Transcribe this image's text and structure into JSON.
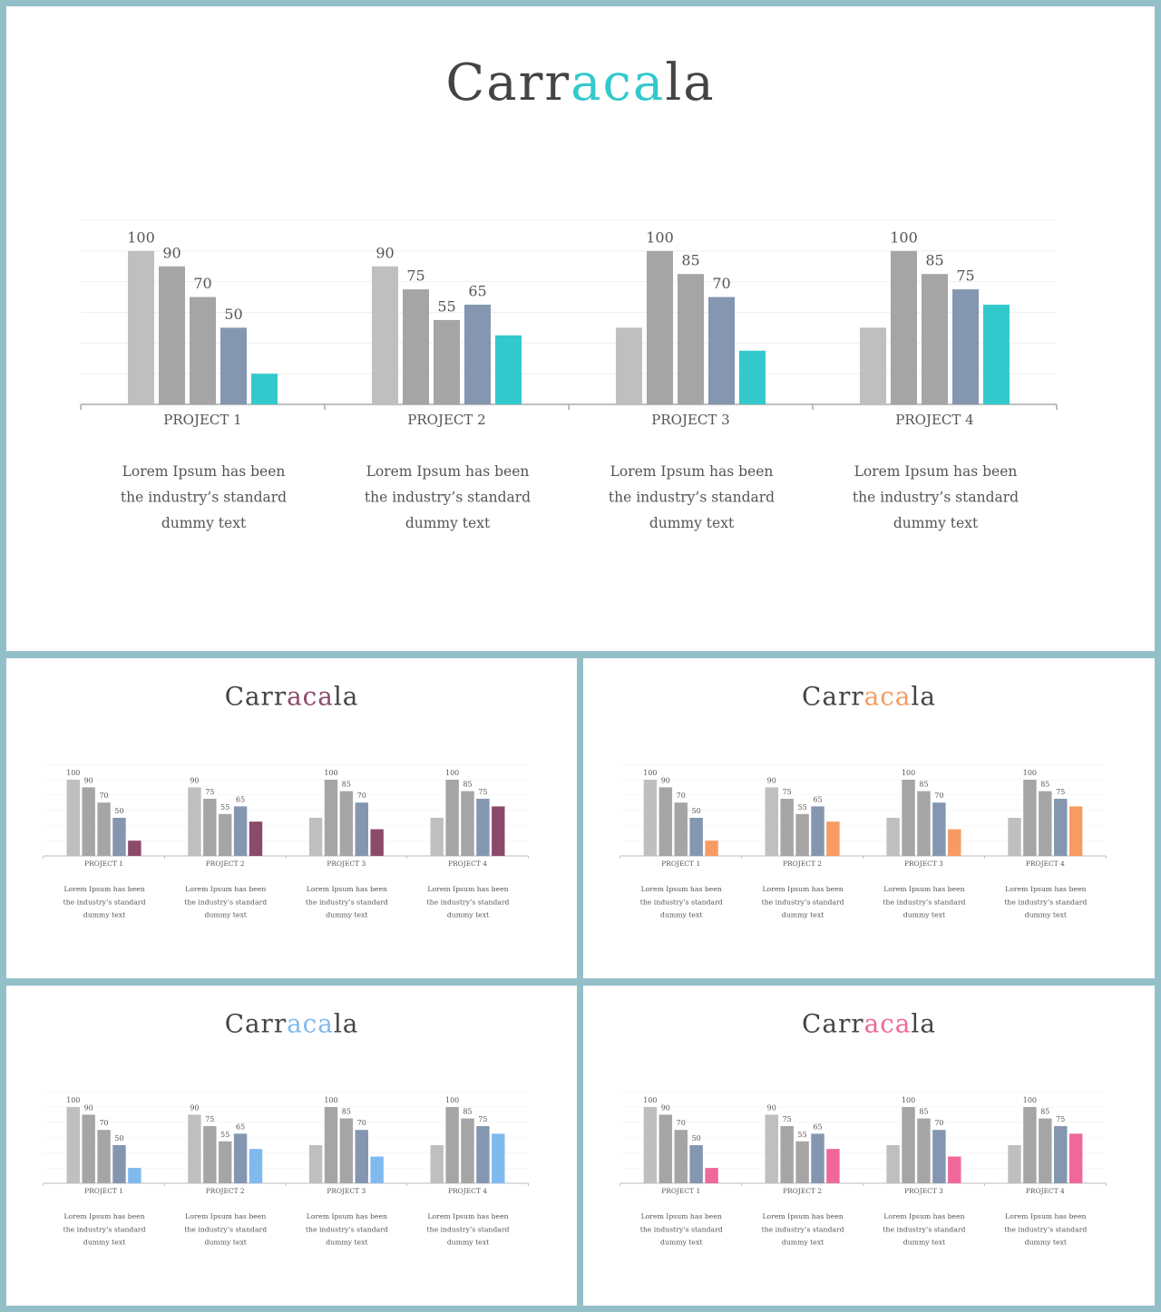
{
  "chart_data": [
    {
      "type": "bar",
      "title": [
        "Carr",
        "aca",
        "la"
      ],
      "title_accent": "#33c9cc",
      "categories": [
        "PROJECT 1",
        "PROJECT 2",
        "PROJECT 3",
        "PROJECT 4"
      ],
      "series": [
        {
          "color": "#bfbfbf",
          "values": [
            100,
            90,
            50,
            50
          ],
          "value_labels": [
            "100",
            "90",
            null,
            null
          ]
        },
        {
          "color": "#a5a5a5",
          "values": [
            90,
            75,
            100,
            100
          ],
          "value_labels": [
            "90",
            "75",
            "100",
            "100"
          ]
        },
        {
          "color": "#a5a5a5",
          "values": [
            70,
            55,
            85,
            85
          ],
          "value_labels": [
            "70",
            "55",
            "85",
            "85"
          ]
        },
        {
          "color": "#8496b0",
          "values": [
            50,
            65,
            70,
            75
          ],
          "value_labels": [
            "50",
            "65",
            "70",
            "75"
          ]
        },
        {
          "color": "#33c9cc",
          "values": [
            20,
            45,
            35,
            65
          ],
          "value_labels": [
            null,
            null,
            null,
            null
          ]
        }
      ],
      "ylim": [
        0,
        120
      ],
      "yticks": [
        0,
        20,
        40,
        60,
        80,
        100,
        120
      ],
      "grid": true,
      "descriptions": [
        [
          "Lorem Ipsum has been",
          "the industry’s standard",
          "dummy text"
        ],
        [
          "Lorem Ipsum has been",
          "the industry’s standard",
          "dummy text"
        ],
        [
          "Lorem Ipsum has been",
          "the industry’s standard",
          "dummy text"
        ],
        [
          "Lorem Ipsum has been",
          "the industry’s standard",
          "dummy text"
        ]
      ]
    },
    {
      "type": "bar",
      "title": [
        "Carr",
        "aca",
        "la"
      ],
      "title_accent": "#8c4a6b",
      "categories": [
        "PROJECT 1",
        "PROJECT 2",
        "PROJECT 3",
        "PROJECT 4"
      ],
      "series": [
        {
          "color": "#bfbfbf",
          "values": [
            100,
            90,
            50,
            50
          ],
          "value_labels": [
            "100",
            "90",
            null,
            null
          ]
        },
        {
          "color": "#a5a5a5",
          "values": [
            90,
            75,
            100,
            100
          ],
          "value_labels": [
            "90",
            "75",
            "100",
            "100"
          ]
        },
        {
          "color": "#a5a5a5",
          "values": [
            70,
            55,
            85,
            85
          ],
          "value_labels": [
            "70",
            "55",
            "85",
            "85"
          ]
        },
        {
          "color": "#8496b0",
          "values": [
            50,
            65,
            70,
            75
          ],
          "value_labels": [
            "50",
            "65",
            "70",
            "75"
          ]
        },
        {
          "color": "#8c4a6b",
          "values": [
            20,
            45,
            35,
            65
          ],
          "value_labels": [
            null,
            null,
            null,
            null
          ]
        }
      ],
      "ylim": [
        0,
        120
      ],
      "yticks": [
        0,
        20,
        40,
        60,
        80,
        100,
        120
      ],
      "grid": true,
      "descriptions": [
        [
          "Lorem Ipsum has been",
          "the industry’s standard",
          "dummy text"
        ],
        [
          "Lorem Ipsum has been",
          "the industry’s standard",
          "dummy text"
        ],
        [
          "Lorem Ipsum has been",
          "the industry’s standard",
          "dummy text"
        ],
        [
          "Lorem Ipsum has been",
          "the industry’s standard",
          "dummy text"
        ]
      ]
    },
    {
      "type": "bar",
      "title": [
        "Carr",
        "aca",
        "la"
      ],
      "title_accent": "#f79b63",
      "categories": [
        "PROJECT 1",
        "PROJECT 2",
        "PROJECT 3",
        "PROJECT 4"
      ],
      "series": [
        {
          "color": "#bfbfbf",
          "values": [
            100,
            90,
            50,
            50
          ],
          "value_labels": [
            "100",
            "90",
            null,
            null
          ]
        },
        {
          "color": "#a5a5a5",
          "values": [
            90,
            75,
            100,
            100
          ],
          "value_labels": [
            "90",
            "75",
            "100",
            "100"
          ]
        },
        {
          "color": "#a5a5a5",
          "values": [
            70,
            55,
            85,
            85
          ],
          "value_labels": [
            "70",
            "55",
            "85",
            "85"
          ]
        },
        {
          "color": "#8496b0",
          "values": [
            50,
            65,
            70,
            75
          ],
          "value_labels": [
            "50",
            "65",
            "70",
            "75"
          ]
        },
        {
          "color": "#f79b63",
          "values": [
            20,
            45,
            35,
            65
          ],
          "value_labels": [
            null,
            null,
            null,
            null
          ]
        }
      ],
      "ylim": [
        0,
        120
      ],
      "yticks": [
        0,
        20,
        40,
        60,
        80,
        100,
        120
      ],
      "grid": true,
      "descriptions": [
        [
          "Lorem Ipsum has been",
          "the industry’s standard",
          "dummy text"
        ],
        [
          "Lorem Ipsum has been",
          "the industry’s standard",
          "dummy text"
        ],
        [
          "Lorem Ipsum has been",
          "the industry’s standard",
          "dummy text"
        ],
        [
          "Lorem Ipsum has been",
          "the industry’s standard",
          "dummy text"
        ]
      ]
    },
    {
      "type": "bar",
      "title": [
        "Carr",
        "aca",
        "la"
      ],
      "title_accent": "#7fb9ee",
      "categories": [
        "PROJECT 1",
        "PROJECT 2",
        "PROJECT 3",
        "PROJECT 4"
      ],
      "series": [
        {
          "color": "#bfbfbf",
          "values": [
            100,
            90,
            50,
            50
          ],
          "value_labels": [
            "100",
            "90",
            null,
            null
          ]
        },
        {
          "color": "#a5a5a5",
          "values": [
            90,
            75,
            100,
            100
          ],
          "value_labels": [
            "90",
            "75",
            "100",
            "100"
          ]
        },
        {
          "color": "#a5a5a5",
          "values": [
            70,
            55,
            85,
            85
          ],
          "value_labels": [
            "70",
            "55",
            "85",
            "85"
          ]
        },
        {
          "color": "#8496b0",
          "values": [
            50,
            65,
            70,
            75
          ],
          "value_labels": [
            "50",
            "65",
            "70",
            "75"
          ]
        },
        {
          "color": "#7fb9ee",
          "values": [
            20,
            45,
            35,
            65
          ],
          "value_labels": [
            null,
            null,
            null,
            null
          ]
        }
      ],
      "ylim": [
        0,
        120
      ],
      "yticks": [
        0,
        20,
        40,
        60,
        80,
        100,
        120
      ],
      "grid": true,
      "descriptions": [
        [
          "Lorem Ipsum has been",
          "the industry’s standard",
          "dummy text"
        ],
        [
          "Lorem Ipsum has been",
          "the industry’s standard",
          "dummy text"
        ],
        [
          "Lorem Ipsum has been",
          "the industry’s standard",
          "dummy text"
        ],
        [
          "Lorem Ipsum has been",
          "the industry’s standard",
          "dummy text"
        ]
      ]
    },
    {
      "type": "bar",
      "title": [
        "Carr",
        "aca",
        "la"
      ],
      "title_accent": "#f0679a",
      "categories": [
        "PROJECT 1",
        "PROJECT 2",
        "PROJECT 3",
        "PROJECT 4"
      ],
      "series": [
        {
          "color": "#bfbfbf",
          "values": [
            100,
            90,
            50,
            50
          ],
          "value_labels": [
            "100",
            "90",
            null,
            null
          ]
        },
        {
          "color": "#a5a5a5",
          "values": [
            90,
            75,
            100,
            100
          ],
          "value_labels": [
            "90",
            "75",
            "100",
            "100"
          ]
        },
        {
          "color": "#a5a5a5",
          "values": [
            70,
            55,
            85,
            85
          ],
          "value_labels": [
            "70",
            "55",
            "85",
            "85"
          ]
        },
        {
          "color": "#8496b0",
          "values": [
            50,
            65,
            70,
            75
          ],
          "value_labels": [
            "50",
            "65",
            "70",
            "75"
          ]
        },
        {
          "color": "#f0679a",
          "values": [
            20,
            45,
            35,
            65
          ],
          "value_labels": [
            null,
            null,
            null,
            null
          ]
        }
      ],
      "ylim": [
        0,
        120
      ],
      "yticks": [
        0,
        20,
        40,
        60,
        80,
        100,
        120
      ],
      "grid": true,
      "descriptions": [
        [
          "Lorem Ipsum has been",
          "the industry’s standard",
          "dummy text"
        ],
        [
          "Lorem Ipsum has been",
          "the industry’s standard",
          "dummy text"
        ],
        [
          "Lorem Ipsum has been",
          "the industry’s standard",
          "dummy text"
        ],
        [
          "Lorem Ipsum has been",
          "the industry’s standard",
          "dummy text"
        ]
      ]
    }
  ]
}
